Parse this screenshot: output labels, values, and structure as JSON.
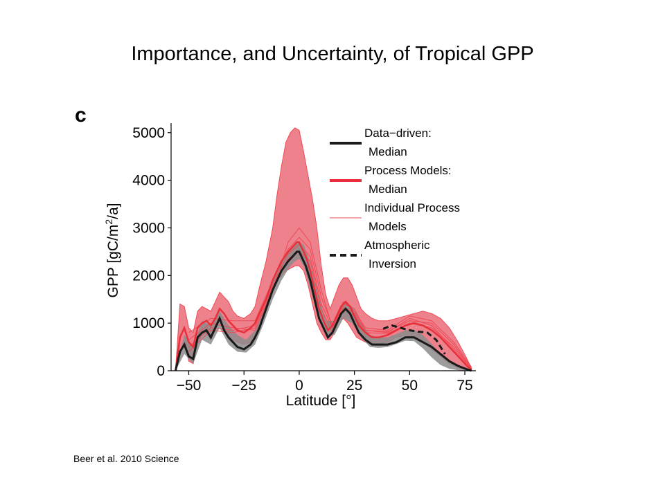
{
  "slide": {
    "title": "Importance, and Uncertainty, of Tropical GPP",
    "citation": "Beer et al. 2010 Science"
  },
  "chart_data": {
    "type": "line",
    "panel_label": "c",
    "xlabel": "Latitude [°]",
    "ylabel_parts": [
      "GPP [gC/m",
      "2",
      "/a]"
    ],
    "xlim": [
      -58,
      80
    ],
    "ylim": [
      0,
      5200
    ],
    "x_ticks": [
      -50,
      -25,
      0,
      25,
      50,
      75
    ],
    "y_ticks": [
      0,
      1000,
      2000,
      3000,
      4000,
      5000
    ],
    "colors": {
      "data_driven": "#1a1a1a",
      "data_driven_band": "#8c8c8c",
      "process_band": "#e8616f",
      "process_median": "#e8303a",
      "individual_models": "#ef4a55",
      "inversion": "#1a1a1a"
    },
    "legend": {
      "placement": "top-right",
      "entries": [
        {
          "style": "thick-black",
          "lines": [
            "Data−driven:",
            "Median"
          ]
        },
        {
          "style": "thick-red",
          "lines": [
            "Process Models:",
            "Median"
          ]
        },
        {
          "style": "thin-red",
          "lines": [
            "Individual Process",
            "Models"
          ]
        },
        {
          "style": "dashed-black",
          "lines": [
            "Atmospheric",
            "Inversion"
          ]
        }
      ]
    },
    "series": [
      {
        "name": "Data−driven: Median",
        "x": [
          -56,
          -54,
          -52,
          -50,
          -48,
          -46,
          -44,
          -42,
          -40,
          -38,
          -36,
          -34,
          -32,
          -30,
          -28,
          -25,
          -22,
          -20,
          -18,
          -15,
          -12,
          -10,
          -8,
          -5,
          -3,
          -1,
          0,
          1,
          3,
          5,
          7,
          9,
          11,
          13,
          15,
          17,
          19,
          21,
          23,
          25,
          27,
          30,
          33,
          36,
          40,
          44,
          48,
          52,
          56,
          60,
          64,
          68,
          72,
          76,
          78
        ],
        "y": [
          0,
          400,
          550,
          300,
          250,
          700,
          800,
          850,
          700,
          900,
          1100,
          850,
          700,
          600,
          500,
          450,
          550,
          700,
          900,
          1300,
          1700,
          1900,
          2100,
          2300,
          2400,
          2500,
          2500,
          2400,
          2200,
          1900,
          1500,
          1100,
          900,
          700,
          800,
          1000,
          1200,
          1300,
          1200,
          1000,
          800,
          650,
          550,
          550,
          550,
          600,
          700,
          700,
          600,
          500,
          350,
          200,
          100,
          30,
          0
        ]
      },
      {
        "name": "Process Models: Median",
        "x": [
          -56,
          -54,
          -52,
          -50,
          -48,
          -46,
          -44,
          -42,
          -40,
          -38,
          -36,
          -34,
          -32,
          -30,
          -28,
          -25,
          -22,
          -20,
          -18,
          -15,
          -12,
          -10,
          -8,
          -5,
          -3,
          -1,
          0,
          1,
          3,
          5,
          7,
          9,
          11,
          13,
          15,
          17,
          19,
          21,
          23,
          25,
          27,
          30,
          33,
          36,
          40,
          44,
          48,
          52,
          56,
          60,
          64,
          68,
          72,
          76,
          78
        ],
        "y": [
          0,
          700,
          900,
          600,
          500,
          900,
          1000,
          1050,
          950,
          1100,
          1300,
          1200,
          1050,
          950,
          850,
          800,
          900,
          1000,
          1200,
          1500,
          1900,
          2100,
          2300,
          2500,
          2600,
          2700,
          2700,
          2600,
          2400,
          2100,
          1700,
          1300,
          1050,
          850,
          950,
          1150,
          1350,
          1450,
          1350,
          1150,
          950,
          800,
          700,
          700,
          750,
          850,
          950,
          1000,
          950,
          850,
          700,
          500,
          300,
          100,
          20
        ]
      },
      {
        "name": "Atmospheric Inversion",
        "x": [
          38,
          42,
          46,
          50,
          54,
          58,
          62,
          66
        ],
        "y": [
          880,
          950,
          900,
          850,
          820,
          800,
          650,
          350
        ]
      }
    ],
    "bands": [
      {
        "name": "Data−driven spread",
        "x": [
          -56,
          -52,
          -48,
          -44,
          -40,
          -36,
          -32,
          -28,
          -24,
          -20,
          -16,
          -12,
          -8,
          -4,
          -2,
          0,
          2,
          4,
          8,
          12,
          16,
          20,
          24,
          28,
          32,
          36,
          40,
          44,
          48,
          52,
          56,
          60,
          64,
          68,
          72,
          76,
          78
        ],
        "low": [
          0,
          350,
          150,
          650,
          550,
          900,
          550,
          400,
          380,
          550,
          1000,
          1500,
          1900,
          2200,
          2300,
          2350,
          2200,
          1900,
          1200,
          750,
          750,
          1100,
          1000,
          700,
          500,
          480,
          500,
          560,
          630,
          620,
          470,
          280,
          120,
          40,
          10,
          0,
          0
        ],
        "high": [
          0,
          750,
          500,
          1050,
          950,
          1250,
          950,
          750,
          650,
          850,
          1300,
          1900,
          2300,
          2550,
          2650,
          2700,
          2650,
          2400,
          1700,
          1050,
          1050,
          1450,
          1350,
          1000,
          750,
          700,
          700,
          770,
          850,
          860,
          750,
          560,
          340,
          180,
          80,
          20,
          0
        ]
      },
      {
        "name": "Process model spread",
        "x": [
          -56,
          -54,
          -52,
          -50,
          -48,
          -46,
          -44,
          -42,
          -40,
          -38,
          -36,
          -34,
          -32,
          -30,
          -28,
          -25,
          -22,
          -20,
          -18,
          -15,
          -12,
          -10,
          -8,
          -6,
          -4,
          -2,
          0,
          2,
          4,
          6,
          8,
          10,
          12,
          14,
          16,
          18,
          20,
          22,
          24,
          26,
          28,
          30,
          33,
          36,
          40,
          44,
          48,
          52,
          56,
          60,
          64,
          68,
          72,
          76,
          78
        ],
        "low": [
          0,
          300,
          650,
          200,
          150,
          600,
          750,
          800,
          650,
          900,
          1100,
          900,
          750,
          650,
          600,
          550,
          600,
          750,
          950,
          1300,
          1700,
          1900,
          2000,
          2100,
          2150,
          2200,
          2200,
          2100,
          1800,
          1400,
          1000,
          800,
          650,
          650,
          800,
          1050,
          1100,
          1000,
          850,
          700,
          650,
          600,
          550,
          560,
          600,
          700,
          750,
          700,
          600,
          450,
          300,
          150,
          60,
          20,
          0
        ],
        "high": [
          0,
          1400,
          1350,
          900,
          800,
          1250,
          1350,
          1300,
          1250,
          1450,
          1650,
          1550,
          1450,
          1250,
          1150,
          1100,
          1200,
          1350,
          1750,
          2300,
          3000,
          3700,
          4300,
          4800,
          5000,
          5100,
          5050,
          4600,
          4100,
          3600,
          3000,
          2200,
          1600,
          1300,
          1550,
          1800,
          1950,
          1950,
          1800,
          1550,
          1300,
          1200,
          1100,
          1050,
          1050,
          1100,
          1150,
          1200,
          1250,
          1200,
          1100,
          900,
          600,
          250,
          50
        ]
      }
    ],
    "individual_models": [
      {
        "x": [
          -50,
          -40,
          -30,
          -20,
          -10,
          -5,
          0,
          5,
          10,
          15,
          20,
          25,
          30,
          40,
          50,
          60,
          70,
          78
        ],
        "y": [
          650,
          1000,
          900,
          850,
          1900,
          2350,
          2500,
          2300,
          1300,
          800,
          1300,
          1150,
          800,
          780,
          1000,
          900,
          500,
          50
        ]
      },
      {
        "x": [
          -50,
          -40,
          -30,
          -20,
          -10,
          -5,
          0,
          5,
          10,
          15,
          20,
          25,
          30,
          40,
          50,
          60,
          70,
          78
        ],
        "y": [
          500,
          900,
          850,
          950,
          2000,
          2450,
          2650,
          2400,
          1400,
          900,
          1350,
          1200,
          850,
          820,
          1050,
          1000,
          550,
          50
        ]
      },
      {
        "x": [
          -50,
          -40,
          -30,
          -20,
          -10,
          -5,
          0,
          5,
          10,
          15,
          20,
          25,
          30,
          40,
          50,
          60,
          70,
          78
        ],
        "y": [
          800,
          1100,
          1050,
          1050,
          2100,
          2550,
          2800,
          2550,
          1550,
          950,
          1450,
          1250,
          900,
          850,
          1150,
          1050,
          600,
          80
        ]
      },
      {
        "x": [
          -50,
          -40,
          -30,
          -20,
          -10,
          -5,
          0,
          5,
          10,
          15,
          20,
          25,
          30,
          40,
          50,
          60,
          70,
          78
        ],
        "y": [
          400,
          850,
          800,
          900,
          1950,
          2700,
          3000,
          2700,
          1700,
          900,
          1400,
          1300,
          850,
          800,
          1100,
          950,
          450,
          40
        ]
      }
    ]
  }
}
